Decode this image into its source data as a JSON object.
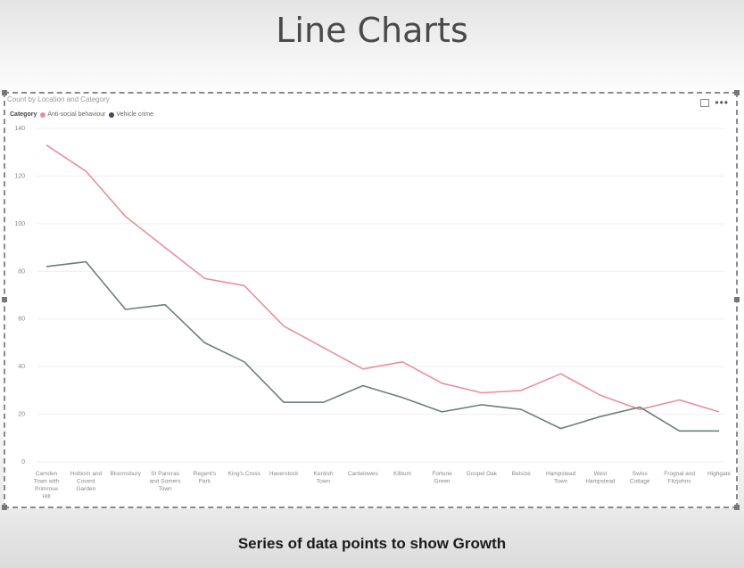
{
  "slide": {
    "title": "Line Charts",
    "subtitle": "Series of data points to show Growth"
  },
  "visual": {
    "title": "Count by Location and Category",
    "legend_title": "Category",
    "focus_icon": "focus-mode-icon",
    "more_icon": "more-options-icon"
  },
  "colors": {
    "anti_social": "#e8909a",
    "vehicle": "#6f7d7d",
    "gridline": "#eeeeee",
    "axis_text": "#888888"
  },
  "chart_data": {
    "type": "line",
    "title": "Count by Location and Category",
    "legend_position": "top-left",
    "grid": true,
    "ylim": [
      0,
      140
    ],
    "yticks": [
      0,
      20,
      40,
      60,
      80,
      100,
      120,
      140
    ],
    "categories": [
      "Camden Town with Primrose Hill",
      "Holborn and Covent Garden",
      "Bloomsbury",
      "St Pancras and Somers Town",
      "Regent's Park",
      "King's Cross",
      "Haverstock",
      "Kentish Town",
      "Cantelowes",
      "Kilburn",
      "Fortune Green",
      "Gospel Oak",
      "Belsize",
      "Hampstead Town",
      "West Hampstead",
      "Swiss Cottage",
      "Frognal and Fitzjohns",
      "Highgate"
    ],
    "category_lines": [
      [
        "Camden",
        "Town with",
        "Primrose",
        "Hill"
      ],
      [
        "Holborn and",
        "Covent",
        "Garden"
      ],
      [
        "Bloomsbury"
      ],
      [
        "St Pancras",
        "and Somers",
        "Town"
      ],
      [
        "Regent's",
        "Park"
      ],
      [
        "King's Cross"
      ],
      [
        "Haverstock"
      ],
      [
        "Kentish",
        "Town"
      ],
      [
        "Cantelowes"
      ],
      [
        "Kilburn"
      ],
      [
        "Fortune",
        "Green"
      ],
      [
        "Gospel Oak"
      ],
      [
        "Belsize"
      ],
      [
        "Hampstead",
        "Town"
      ],
      [
        "West",
        "Hampstead"
      ],
      [
        "Swiss",
        "Cottage"
      ],
      [
        "Frognal and",
        "Fitzjohns"
      ],
      [
        "Highgate"
      ]
    ],
    "series": [
      {
        "name": "Anti-social behaviour",
        "color": "#e8909a",
        "values": [
          133,
          122,
          103,
          90,
          77,
          74,
          57,
          48,
          39,
          42,
          33,
          29,
          30,
          37,
          28,
          22,
          26,
          21
        ]
      },
      {
        "name": "Vehicle crime",
        "color": "#6f7d7d",
        "values": [
          82,
          84,
          64,
          66,
          50,
          42,
          25,
          25,
          32,
          27,
          21,
          24,
          22,
          14,
          19,
          23,
          13,
          13
        ]
      }
    ]
  }
}
